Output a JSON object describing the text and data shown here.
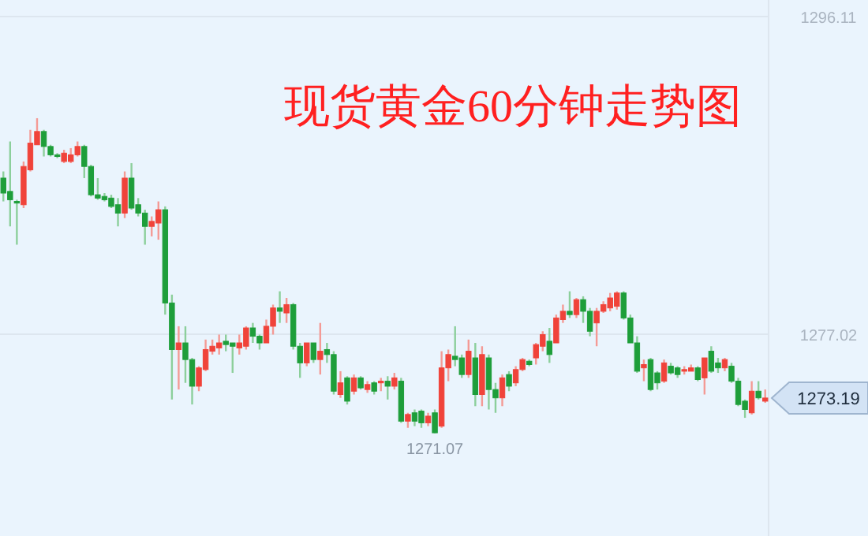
{
  "chart_data": {
    "type": "candlestick",
    "title": "现货黄金60分钟走势图",
    "categories": [
      null,
      null,
      null,
      null,
      null,
      null,
      null,
      null,
      null,
      null,
      null,
      null,
      null,
      null,
      null,
      null,
      null,
      null,
      null,
      null,
      null,
      null,
      null,
      null,
      null,
      null,
      null,
      null,
      null,
      null,
      null,
      null,
      null,
      null,
      null,
      null,
      null,
      null,
      null,
      null,
      null,
      null,
      null,
      null,
      null,
      null,
      null,
      null,
      null,
      null,
      null,
      null,
      null,
      null,
      null,
      null,
      null,
      null,
      null,
      null,
      null,
      null,
      null,
      null,
      null,
      null,
      null,
      null,
      null,
      null,
      null,
      null,
      null,
      null,
      null,
      null,
      null,
      null,
      null,
      null,
      null,
      null,
      null,
      null,
      null,
      null,
      null,
      null,
      null,
      null,
      null,
      null,
      null,
      null,
      null,
      null,
      null,
      null,
      null,
      null,
      null,
      null,
      null,
      null,
      null,
      null,
      null,
      null,
      null,
      null,
      null,
      null,
      null,
      null
    ],
    "ohlc": [
      [
        1286.4,
        1286.8,
        1285.0,
        1285.5
      ],
      [
        1285.6,
        1288.6,
        1283.5,
        1285.1
      ],
      [
        1285.0,
        1285.1,
        1282.4,
        1284.9
      ],
      [
        1284.8,
        1287.4,
        1284.6,
        1287.1
      ],
      [
        1286.9,
        1289.3,
        1286.8,
        1288.5
      ],
      [
        1288.4,
        1290.0,
        1288.4,
        1289.2
      ],
      [
        1289.2,
        1289.3,
        1287.7,
        1288.3
      ],
      [
        1288.3,
        1288.4,
        1287.7,
        1287.8
      ],
      [
        1287.8,
        1287.9,
        1287.6,
        1287.7
      ],
      [
        1287.4,
        1288.1,
        1287.3,
        1287.9
      ],
      [
        1287.4,
        1288.2,
        1287.3,
        1287.8
      ],
      [
        1287.8,
        1288.6,
        1287.7,
        1288.3
      ],
      [
        1288.3,
        1288.4,
        1286.4,
        1287.1
      ],
      [
        1287.1,
        1287.2,
        1285.3,
        1285.4
      ],
      [
        1285.4,
        1286.4,
        1285.1,
        1285.2
      ],
      [
        1285.3,
        1285.5,
        1285.0,
        1285.1
      ],
      [
        1285.2,
        1285.4,
        1284.6,
        1284.7
      ],
      [
        1284.8,
        1285.2,
        1283.5,
        1284.3
      ],
      [
        1284.3,
        1286.8,
        1284.0,
        1286.4
      ],
      [
        1286.4,
        1287.3,
        1284.5,
        1284.6
      ],
      [
        1284.8,
        1285.2,
        1284.1,
        1284.3
      ],
      [
        1284.3,
        1284.5,
        1282.4,
        1283.5
      ],
      [
        1283.5,
        1284.1,
        1282.9,
        1283.8
      ],
      [
        1283.7,
        1285.0,
        1282.7,
        1284.5
      ],
      [
        1284.5,
        1284.7,
        1278.2,
        1278.9
      ],
      [
        1278.9,
        1279.4,
        1273.1,
        1276.1
      ],
      [
        1276.1,
        1277.5,
        1273.7,
        1276.5
      ],
      [
        1276.5,
        1277.5,
        1274.1,
        1275.5
      ],
      [
        1275.5,
        1275.6,
        1272.8,
        1273.9
      ],
      [
        1273.9,
        1275.1,
        1273.6,
        1275.0
      ],
      [
        1274.9,
        1276.7,
        1274.8,
        1276.1
      ],
      [
        1276.0,
        1276.7,
        1275.8,
        1276.3
      ],
      [
        1276.2,
        1277.0,
        1275.8,
        1276.5
      ],
      [
        1276.6,
        1277.0,
        1276.0,
        1276.4
      ],
      [
        1276.5,
        1276.5,
        1274.7,
        1276.3
      ],
      [
        1276.2,
        1277.0,
        1275.8,
        1276.5
      ],
      [
        1276.3,
        1277.5,
        1276.1,
        1277.4
      ],
      [
        1277.4,
        1277.7,
        1276.5,
        1276.9
      ],
      [
        1276.9,
        1277.0,
        1276.1,
        1276.5
      ],
      [
        1276.5,
        1277.9,
        1276.5,
        1277.5
      ],
      [
        1277.5,
        1278.8,
        1277.0,
        1278.6
      ],
      [
        1278.6,
        1279.6,
        1277.7,
        1278.4
      ],
      [
        1278.3,
        1279.2,
        1277.7,
        1278.8
      ],
      [
        1278.8,
        1278.9,
        1276.1,
        1276.3
      ],
      [
        1276.3,
        1276.5,
        1274.4,
        1275.3
      ],
      [
        1275.3,
        1276.5,
        1275.1,
        1276.5
      ],
      [
        1276.5,
        1276.5,
        1275.3,
        1275.5
      ],
      [
        1275.5,
        1277.7,
        1274.6,
        1276.0
      ],
      [
        1276.1,
        1276.5,
        1275.3,
        1275.8
      ],
      [
        1275.8,
        1276.0,
        1273.4,
        1273.6
      ],
      [
        1273.4,
        1274.8,
        1273.2,
        1274.1
      ],
      [
        1274.4,
        1274.5,
        1272.8,
        1273.0
      ],
      [
        1273.6,
        1274.6,
        1273.4,
        1274.4
      ],
      [
        1274.4,
        1274.5,
        1273.7,
        1273.8
      ],
      [
        1273.7,
        1274.2,
        1273.5,
        1274.0
      ],
      [
        1274.1,
        1274.2,
        1273.4,
        1273.6
      ],
      [
        1274.1,
        1274.4,
        1273.6,
        1274.2
      ],
      [
        1274.2,
        1274.5,
        1273.1,
        1273.9
      ],
      [
        1273.9,
        1274.7,
        1273.7,
        1274.4
      ],
      [
        1274.2,
        1274.4,
        1271.7,
        1271.8
      ],
      [
        1271.8,
        1272.3,
        1271.4,
        1272.2
      ],
      [
        1272.3,
        1272.5,
        1271.5,
        1271.8
      ],
      [
        1272.4,
        1272.5,
        1271.4,
        1271.7
      ],
      [
        1271.7,
        1272.3,
        1271.5,
        1272.1
      ],
      [
        1272.3,
        1272.5,
        1271.07,
        1271.1
      ],
      [
        1271.5,
        1276.0,
        1271.4,
        1275.0
      ],
      [
        1275.0,
        1276.1,
        1274.2,
        1275.8
      ],
      [
        1275.7,
        1277.5,
        1275.1,
        1275.5
      ],
      [
        1275.6,
        1275.8,
        1274.4,
        1274.6
      ],
      [
        1274.6,
        1276.7,
        1274.4,
        1276.0
      ],
      [
        1275.6,
        1276.5,
        1272.7,
        1273.4
      ],
      [
        1273.4,
        1276.3,
        1272.7,
        1275.8
      ],
      [
        1275.6,
        1275.8,
        1272.5,
        1273.7
      ],
      [
        1273.7,
        1274.1,
        1272.3,
        1273.2
      ],
      [
        1273.2,
        1274.6,
        1272.7,
        1274.4
      ],
      [
        1274.6,
        1274.8,
        1273.6,
        1273.9
      ],
      [
        1274.1,
        1275.1,
        1273.9,
        1274.9
      ],
      [
        1274.9,
        1275.6,
        1274.8,
        1275.5
      ],
      [
        1275.4,
        1275.5,
        1275.1,
        1275.2
      ],
      [
        1275.6,
        1276.5,
        1275.2,
        1276.4
      ],
      [
        1276.3,
        1277.2,
        1276.0,
        1277.0
      ],
      [
        1276.6,
        1277.4,
        1275.3,
        1275.8
      ],
      [
        1276.5,
        1278.2,
        1276.5,
        1278.0
      ],
      [
        1277.9,
        1278.8,
        1277.7,
        1278.4
      ],
      [
        1278.4,
        1279.6,
        1278.0,
        1278.2
      ],
      [
        1278.2,
        1279.2,
        1278.0,
        1279.1
      ],
      [
        1279.1,
        1279.3,
        1277.7,
        1278.4
      ],
      [
        1278.4,
        1278.6,
        1276.9,
        1277.2
      ],
      [
        1277.7,
        1278.6,
        1276.3,
        1278.4
      ],
      [
        1278.4,
        1279.0,
        1278.3,
        1278.8
      ],
      [
        1278.6,
        1279.5,
        1278.4,
        1279.2
      ],
      [
        1278.7,
        1279.6,
        1278.5,
        1279.5
      ],
      [
        1279.5,
        1279.6,
        1277.9,
        1278.0
      ],
      [
        1278.0,
        1278.2,
        1276.5,
        1276.5
      ],
      [
        1276.5,
        1276.9,
        1274.7,
        1274.8
      ],
      [
        1275.0,
        1275.5,
        1274.2,
        1275.2
      ],
      [
        1275.5,
        1275.6,
        1273.6,
        1273.7
      ],
      [
        1274.7,
        1274.8,
        1273.7,
        1274.1
      ],
      [
        1274.2,
        1275.5,
        1274.1,
        1275.3
      ],
      [
        1275.1,
        1275.3,
        1274.6,
        1274.7
      ],
      [
        1275.0,
        1275.1,
        1274.4,
        1274.6
      ],
      [
        1274.8,
        1275.1,
        1274.6,
        1274.9
      ],
      [
        1274.8,
        1275.2,
        1274.8,
        1275.0
      ],
      [
        1275.0,
        1275.1,
        1274.2,
        1274.3
      ],
      [
        1274.4,
        1275.6,
        1273.4,
        1275.6
      ],
      [
        1276.0,
        1276.3,
        1274.7,
        1274.8
      ],
      [
        1275.3,
        1275.6,
        1274.7,
        1275.0
      ],
      [
        1275.0,
        1275.6,
        1274.8,
        1275.5
      ],
      [
        1275.1,
        1275.3,
        1274.1,
        1274.2
      ],
      [
        1274.2,
        1274.4,
        1272.7,
        1272.8
      ],
      [
        1273.0,
        1273.1,
        1272.0,
        1272.5
      ],
      [
        1272.3,
        1274.2,
        1272.2,
        1273.6
      ],
      [
        1273.6,
        1274.2,
        1273.1,
        1273.2
      ],
      [
        1273.0,
        1273.7,
        1272.9,
        1273.19
      ]
    ],
    "ylim": [
      1264.9,
      1297.1
    ],
    "yticks": [
      1277.02,
      1296.11
    ],
    "grid": "y",
    "annotations": [
      {
        "text": "1271.07",
        "y": 1271.07
      },
      "1273.19"
    ]
  }
}
